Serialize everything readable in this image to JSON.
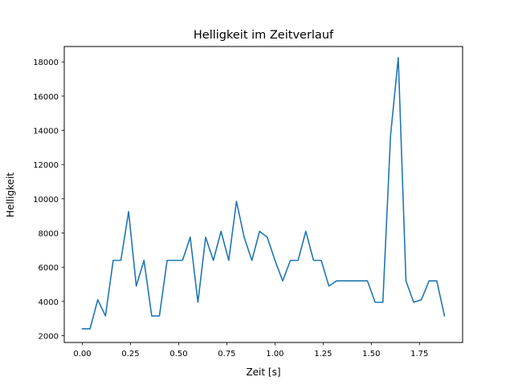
{
  "chart_data": {
    "type": "line",
    "title": "Helligkeit im Zeitverlauf",
    "xlabel": "Zeit [s]",
    "ylabel": "Helligkeit",
    "xlim": [
      -0.094,
      1.974
    ],
    "ylim": [
      1600,
      18900
    ],
    "xticks": [
      0.0,
      0.25,
      0.5,
      0.75,
      1.0,
      1.25,
      1.5,
      1.75
    ],
    "xtick_labels": [
      "0.00",
      "0.25",
      "0.50",
      "0.75",
      "1.00",
      "1.25",
      "1.50",
      "1.75"
    ],
    "yticks": [
      2000,
      4000,
      6000,
      8000,
      10000,
      12000,
      14000,
      16000,
      18000
    ],
    "ytick_labels": [
      "2000",
      "4000",
      "6000",
      "8000",
      "10000",
      "12000",
      "14000",
      "16000",
      "18000"
    ],
    "grid": false,
    "series": [
      {
        "color": "#1f77b4",
        "x": [
          0.0,
          0.04,
          0.08,
          0.12,
          0.16,
          0.2,
          0.24,
          0.28,
          0.32,
          0.36,
          0.4,
          0.44,
          0.48,
          0.52,
          0.56,
          0.6,
          0.64,
          0.68,
          0.72,
          0.76,
          0.8,
          0.84,
          0.88,
          0.92,
          0.96,
          1.0,
          1.04,
          1.08,
          1.12,
          1.16,
          1.2,
          1.24,
          1.28,
          1.32,
          1.36,
          1.4,
          1.44,
          1.48,
          1.52,
          1.56,
          1.6,
          1.64,
          1.68,
          1.72,
          1.76,
          1.8,
          1.84,
          1.88
        ],
        "y": [
          2400,
          2400,
          4100,
          3150,
          6400,
          6400,
          9250,
          4900,
          6400,
          3150,
          3150,
          6400,
          6400,
          6400,
          7750,
          3950,
          7750,
          6400,
          8100,
          6400,
          9850,
          7750,
          6400,
          8100,
          7750,
          6400,
          5200,
          6400,
          6400,
          8100,
          6400,
          6400,
          4900,
          5200,
          5200,
          5200,
          5200,
          5200,
          3950,
          3950,
          13700,
          18250,
          5200,
          3950,
          4100,
          5200,
          5200,
          3150
        ]
      }
    ]
  }
}
